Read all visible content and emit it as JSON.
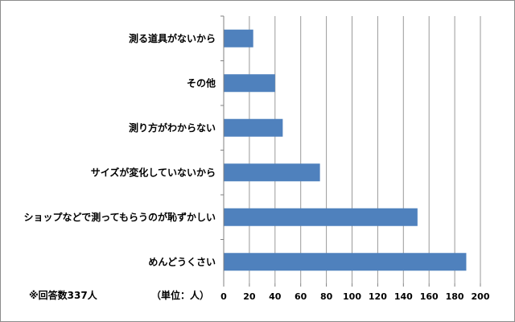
{
  "chart_data": {
    "type": "bar",
    "orientation": "horizontal",
    "categories": [
      "測る道具がないから",
      "その他",
      "測り方がわからない",
      "サイズが変化していないから",
      "ショップなどで測ってもらうのが恥ずかしい",
      "めんどうくさい"
    ],
    "values": [
      23,
      40,
      46,
      75,
      151,
      189
    ],
    "xlim": [
      0,
      200
    ],
    "xticks": [
      0,
      20,
      40,
      60,
      80,
      100,
      120,
      140,
      160,
      180,
      200
    ],
    "gridlines": true,
    "bar_color": "#4f81bd",
    "grid_color": "#9a9a9a",
    "unit_label": "（単位：人）",
    "respondent_note": "※回答数337人",
    "legend": "none"
  }
}
